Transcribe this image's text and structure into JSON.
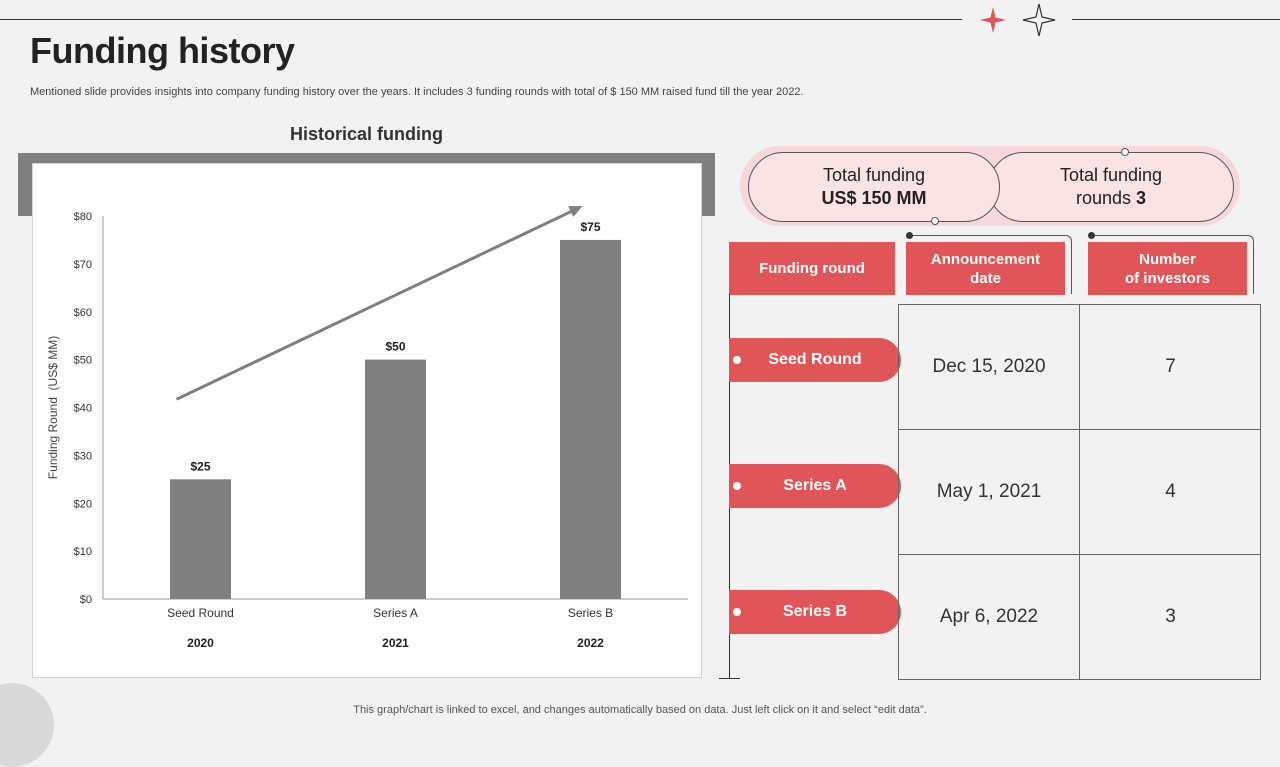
{
  "page": {
    "title": "Funding history",
    "subtitle": "Mentioned slide provides insights into company funding history over the years. It includes 3 funding rounds with total of $ 150 MM  raised fund till the year 2022.",
    "footnote": "This graph/chart is linked to excel, and changes automatically based on data. Just left click on it and select “edit data”."
  },
  "colors": {
    "accent": "#e05557",
    "pill": "#f8d7d9",
    "bar": "#7f7f7f"
  },
  "summary": {
    "total_funding_label": "Total funding",
    "total_funding_value": "US$ 150 MM",
    "total_rounds_label": "Total funding",
    "total_rounds_prefix": "rounds",
    "total_rounds_value": "3"
  },
  "table": {
    "headers": {
      "round": "Funding round",
      "date_line1": "Announcement",
      "date_line2": "date",
      "investors_line1": "Number",
      "investors_line2": "of investors"
    },
    "rows": [
      {
        "round": "Seed Round",
        "date": "Dec 15, 2020",
        "investors": "7"
      },
      {
        "round": "Series A",
        "date": "May 1, 2021",
        "investors": "4"
      },
      {
        "round": "Series B",
        "date": "Apr 6, 2022",
        "investors": "3"
      }
    ]
  },
  "chart_data": {
    "type": "bar",
    "title": "Historical funding",
    "ylabel": "Funding Round  (US$ MM)",
    "xlabel": "",
    "categories": [
      "Seed Round",
      "Series A",
      "Series B"
    ],
    "years": [
      "2020",
      "2021",
      "2022"
    ],
    "values": [
      25,
      50,
      75
    ],
    "value_labels": [
      "$25",
      "$50",
      "$75"
    ],
    "ylim": [
      0,
      80
    ],
    "yticks": [
      0,
      10,
      20,
      30,
      40,
      50,
      60,
      70,
      80
    ],
    "ytick_labels": [
      "$0",
      "$10",
      "$20",
      "$30",
      "$40",
      "$50",
      "$60",
      "$70",
      "$80"
    ],
    "trend_arrow": true,
    "grid": false,
    "bar_color": "#7f7f7f"
  }
}
